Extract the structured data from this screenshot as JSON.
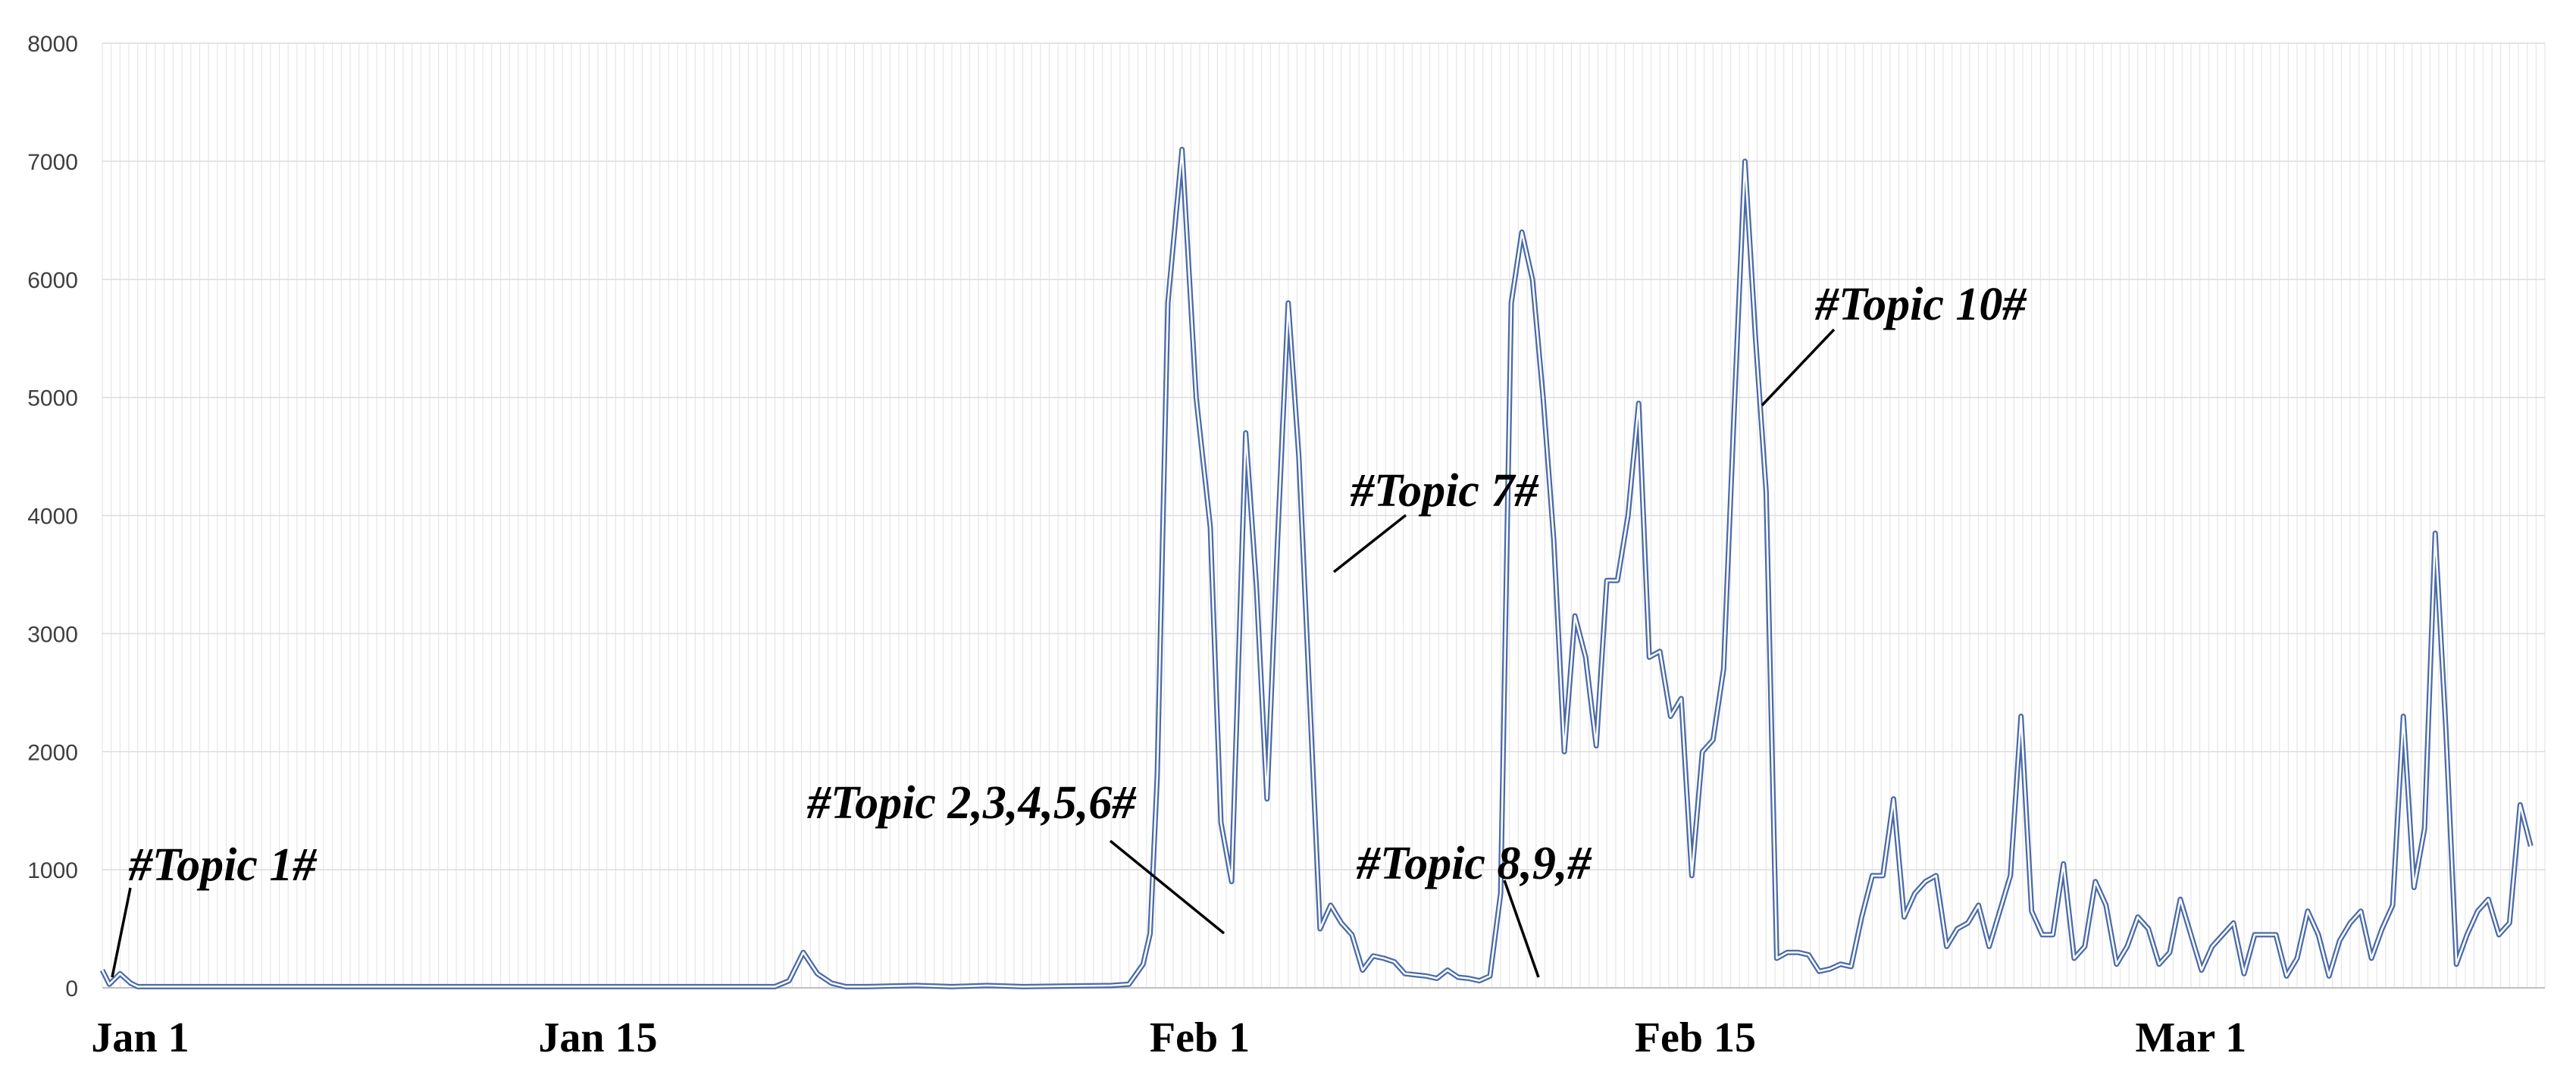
{
  "chart_data": {
    "type": "line",
    "title": "",
    "xlabel": "",
    "ylabel": "",
    "ylim": [
      0,
      8000
    ],
    "yticks": [
      "0",
      "1000",
      "2000",
      "3000",
      "4000",
      "5000",
      "6000",
      "7000",
      "8000"
    ],
    "x_tick_labels": [
      {
        "label": "Jan 1",
        "day": 1
      },
      {
        "label": "Jan 15",
        "day": 15
      },
      {
        "label": "Feb 1",
        "day": 32
      },
      {
        "label": "Feb 15",
        "day": 46
      },
      {
        "label": "Mar 1",
        "day": 60
      }
    ],
    "grid": true,
    "series_color": "#4a6aa8",
    "series": [
      {
        "points": [
          [
            1.0,
            150
          ],
          [
            1.2,
            30
          ],
          [
            1.5,
            120
          ],
          [
            1.8,
            40
          ],
          [
            2.0,
            10
          ],
          [
            2.3,
            10
          ],
          [
            20,
            10
          ],
          [
            20.4,
            60
          ],
          [
            20.8,
            300
          ],
          [
            21.2,
            120
          ],
          [
            21.6,
            40
          ],
          [
            22.0,
            10
          ],
          [
            22.5,
            10
          ],
          [
            24,
            20
          ],
          [
            25,
            10
          ],
          [
            26,
            20
          ],
          [
            27,
            10
          ],
          [
            29.5,
            20
          ],
          [
            30,
            30
          ],
          [
            30.4,
            200
          ],
          [
            30.6,
            460
          ],
          [
            30.8,
            1800
          ],
          [
            31.1,
            5800
          ],
          [
            31.5,
            7100
          ],
          [
            31.9,
            5000
          ],
          [
            32.3,
            3900
          ],
          [
            32.6,
            1400
          ],
          [
            32.9,
            900
          ],
          [
            33.3,
            4700
          ],
          [
            33.6,
            3400
          ],
          [
            33.9,
            1600
          ],
          [
            34.2,
            3800
          ],
          [
            34.5,
            5800
          ],
          [
            34.8,
            4500
          ],
          [
            35.1,
            2500
          ],
          [
            35.4,
            500
          ],
          [
            35.7,
            700
          ],
          [
            36.0,
            550
          ],
          [
            36.3,
            450
          ],
          [
            36.6,
            150
          ],
          [
            36.9,
            270
          ],
          [
            37.2,
            250
          ],
          [
            37.5,
            220
          ],
          [
            37.8,
            120
          ],
          [
            38.1,
            110
          ],
          [
            38.4,
            100
          ],
          [
            38.7,
            80
          ],
          [
            39.0,
            150
          ],
          [
            39.3,
            90
          ],
          [
            39.6,
            80
          ],
          [
            39.9,
            60
          ],
          [
            40.2,
            100
          ],
          [
            40.5,
            800
          ],
          [
            40.8,
            5800
          ],
          [
            41.1,
            6400
          ],
          [
            41.4,
            6000
          ],
          [
            41.7,
            5000
          ],
          [
            42.0,
            3800
          ],
          [
            42.3,
            2000
          ],
          [
            42.6,
            3150
          ],
          [
            42.9,
            2800
          ],
          [
            43.2,
            2050
          ],
          [
            43.5,
            3450
          ],
          [
            43.8,
            3450
          ],
          [
            44.1,
            4000
          ],
          [
            44.4,
            4950
          ],
          [
            44.7,
            2800
          ],
          [
            45.0,
            2850
          ],
          [
            45.3,
            2300
          ],
          [
            45.6,
            2450
          ],
          [
            45.9,
            950
          ],
          [
            46.2,
            2000
          ],
          [
            46.5,
            2100
          ],
          [
            46.8,
            2700
          ],
          [
            47.1,
            4900
          ],
          [
            47.4,
            7000
          ],
          [
            47.7,
            5500
          ],
          [
            48.0,
            4200
          ],
          [
            48.3,
            250
          ],
          [
            48.6,
            300
          ],
          [
            48.9,
            300
          ],
          [
            49.2,
            280
          ],
          [
            49.5,
            140
          ],
          [
            49.8,
            160
          ],
          [
            50.1,
            200
          ],
          [
            50.4,
            180
          ],
          [
            50.7,
            600
          ],
          [
            51.0,
            950
          ],
          [
            51.3,
            950
          ],
          [
            51.6,
            1600
          ],
          [
            51.9,
            600
          ],
          [
            52.2,
            800
          ],
          [
            52.5,
            900
          ],
          [
            52.8,
            950
          ],
          [
            53.1,
            350
          ],
          [
            53.4,
            500
          ],
          [
            53.7,
            550
          ],
          [
            54.0,
            700
          ],
          [
            54.3,
            350
          ],
          [
            54.6,
            650
          ],
          [
            54.9,
            950
          ],
          [
            55.2,
            2300
          ],
          [
            55.5,
            650
          ],
          [
            55.8,
            450
          ],
          [
            56.1,
            450
          ],
          [
            56.4,
            1050
          ],
          [
            56.7,
            250
          ],
          [
            57.0,
            350
          ],
          [
            57.3,
            900
          ],
          [
            57.6,
            700
          ],
          [
            57.9,
            200
          ],
          [
            58.2,
            350
          ],
          [
            58.5,
            600
          ],
          [
            58.8,
            500
          ],
          [
            59.1,
            200
          ],
          [
            59.4,
            300
          ],
          [
            59.7,
            750
          ],
          [
            60.0,
            450
          ],
          [
            60.3,
            150
          ],
          [
            60.6,
            350
          ],
          [
            60.9,
            450
          ],
          [
            61.2,
            550
          ],
          [
            61.5,
            120
          ],
          [
            61.8,
            450
          ],
          [
            62.1,
            450
          ],
          [
            62.4,
            450
          ],
          [
            62.7,
            100
          ],
          [
            63.0,
            250
          ],
          [
            63.3,
            650
          ],
          [
            63.6,
            450
          ],
          [
            63.9,
            100
          ],
          [
            64.2,
            400
          ],
          [
            64.5,
            550
          ],
          [
            64.8,
            650
          ],
          [
            65.1,
            250
          ],
          [
            65.4,
            500
          ],
          [
            65.7,
            700
          ],
          [
            66.0,
            2300
          ],
          [
            66.3,
            850
          ],
          [
            66.6,
            1350
          ],
          [
            66.9,
            3850
          ],
          [
            67.2,
            2200
          ],
          [
            67.5,
            200
          ],
          [
            67.8,
            450
          ],
          [
            68.1,
            650
          ],
          [
            68.4,
            750
          ],
          [
            68.7,
            450
          ],
          [
            69.0,
            550
          ],
          [
            69.3,
            1550
          ],
          [
            69.6,
            1200
          ]
        ]
      }
    ],
    "annotations": [
      {
        "text": "#Topic 1#"
      },
      {
        "text": "#Topic 2,3,4,5,6#"
      },
      {
        "text": "#Topic 7#"
      },
      {
        "text": "#Topic 8,9,#"
      },
      {
        "text": "#Topic 10#"
      }
    ]
  }
}
